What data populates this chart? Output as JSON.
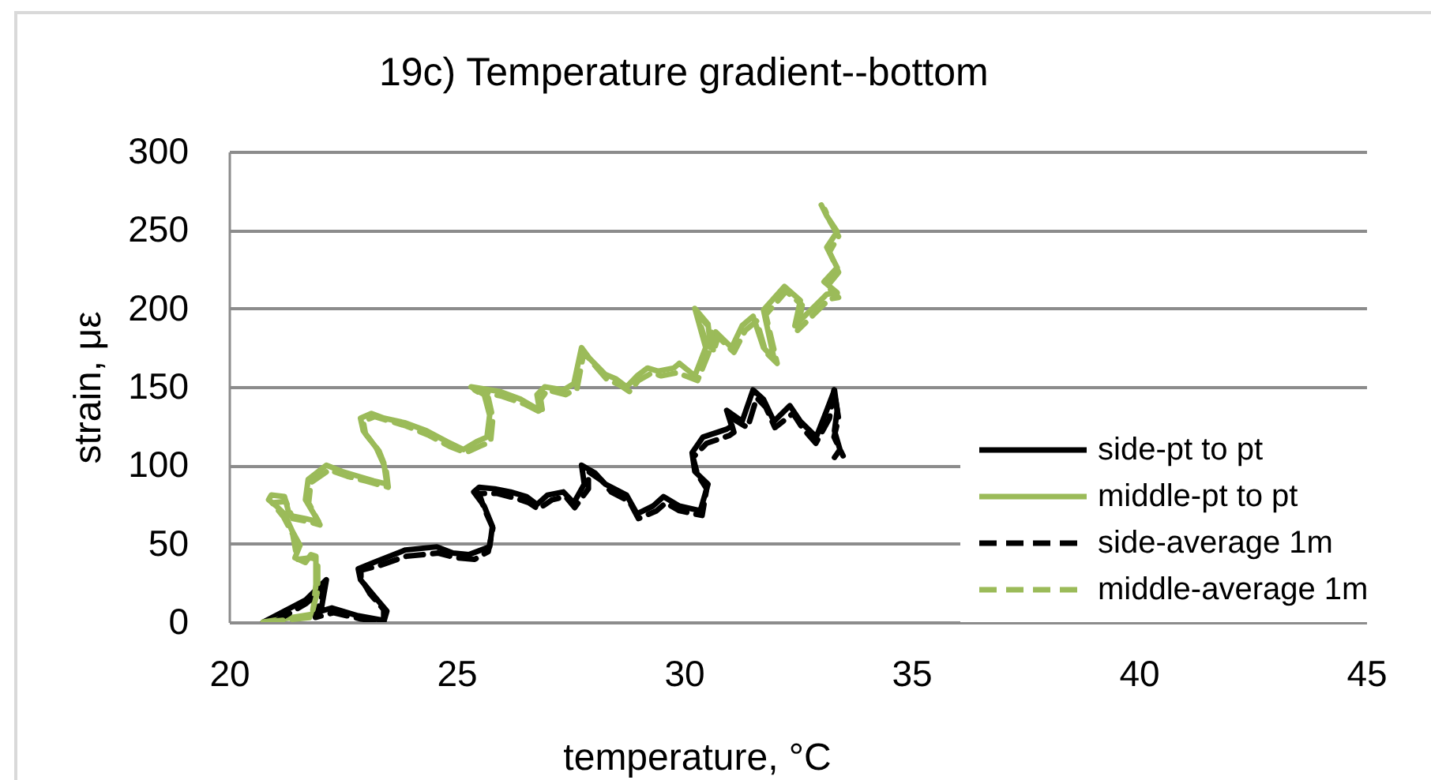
{
  "chart_data": {
    "type": "line",
    "title": "19c) Temperature gradient--bottom",
    "xlabel": "temperature, °C",
    "ylabel": "strain, με",
    "xlim": [
      20,
      45
    ],
    "xticks": [
      20,
      25,
      30,
      35,
      40,
      45
    ],
    "ylim": [
      0,
      300
    ],
    "yticks": [
      0,
      50,
      100,
      150,
      200,
      250,
      300
    ],
    "grid": "y",
    "legend": "bottom right",
    "line_style": "solid",
    "series": [
      {
        "name": "side-pt to pt",
        "color": "#000000",
        "x": [
          20.75,
          21.68,
          22.14,
          22.02,
          22.26,
          22.84,
          23.41,
          23.47,
          23.18,
          22.89,
          22.84,
          23.18,
          23.88,
          24.57,
          24.92,
          25.27,
          25.73,
          25.79,
          25.61,
          25.38,
          25.5,
          25.84,
          26.19,
          26.54,
          26.77,
          27.0,
          27.35,
          27.58,
          27.81,
          27.75,
          28.05,
          28.27,
          28.74,
          28.97,
          29.32,
          29.55,
          29.9,
          30.36,
          30.53,
          30.24,
          30.18,
          30.42,
          30.94,
          31.05,
          30.94,
          31.28,
          31.52,
          31.75,
          31.98,
          32.33,
          32.56,
          32.91,
          33.14,
          33.31,
          33.37,
          33.31,
          33.43,
          33.31
        ],
        "values": [
          0,
          14,
          27,
          7,
          9,
          4,
          1,
          7,
          17,
          27,
          34,
          38,
          46,
          48,
          44,
          43,
          48,
          61,
          74,
          83,
          86,
          85,
          83,
          80,
          75,
          81,
          83,
          76,
          88,
          100,
          95,
          88,
          81,
          69,
          74,
          80,
          74,
          71,
          88,
          96,
          108,
          118,
          123,
          125,
          135,
          128,
          148,
          142,
          128,
          138,
          128,
          118,
          135,
          148,
          135,
          122,
          110,
          105
        ]
      },
      {
        "name": "middle-pt to pt",
        "color": "#9bbb59",
        "x": [
          20.75,
          21.84,
          21.91,
          21.91,
          21.8,
          21.68,
          21.45,
          21.56,
          21.39,
          21.22,
          21.04,
          20.87,
          20.93,
          21.22,
          21.33,
          21.68,
          21.97,
          21.68,
          21.74,
          22.14,
          22.49,
          22.84,
          23.18,
          23.47,
          23.41,
          23.24,
          22.95,
          22.89,
          23.13,
          23.41,
          23.88,
          24.34,
          24.8,
          25.15,
          25.44,
          25.67,
          25.73,
          25.61,
          25.32,
          25.96,
          26.42,
          26.83,
          26.77,
          26.94,
          27.35,
          27.58,
          27.75,
          27.93,
          28.27,
          28.51,
          28.74,
          28.97,
          29.2,
          29.43,
          29.78,
          29.9,
          30.24,
          30.48,
          30.24,
          30.53,
          30.59,
          30.7,
          31.05,
          31.28,
          31.52,
          31.75,
          31.98,
          31.75,
          32.21,
          32.56,
          32.44,
          32.79,
          33.14,
          33.37,
          33.08,
          33.37,
          33.14,
          33.37,
          33.14,
          33.02
        ],
        "values": [
          0,
          5,
          24,
          42,
          43,
          38,
          41,
          49,
          58,
          69,
          74,
          78,
          81,
          80,
          68,
          66,
          64,
          78,
          91,
          100,
          96,
          93,
          90,
          88,
          100,
          111,
          122,
          130,
          133,
          130,
          127,
          122,
          115,
          110,
          115,
          118,
          132,
          145,
          150,
          147,
          142,
          135,
          145,
          150,
          148,
          152,
          175,
          168,
          158,
          155,
          150,
          157,
          162,
          160,
          162,
          165,
          157,
          175,
          200,
          190,
          175,
          185,
          175,
          189,
          195,
          175,
          168,
          199,
          214,
          205,
          189,
          199,
          209,
          210,
          217,
          226,
          239,
          249,
          259,
          266
        ]
      },
      {
        "name": "side-average 1m",
        "color": "#000000",
        "line_style": "dashed",
        "x": [
          21.0,
          21.7,
          22.1,
          21.9,
          22.3,
          22.9,
          23.4,
          23.4,
          23.1,
          22.9,
          22.9,
          23.3,
          23.9,
          24.6,
          25.0,
          25.4,
          25.7,
          25.8,
          25.6,
          25.5,
          25.9,
          26.3,
          26.6,
          26.8,
          27.1,
          27.4,
          27.6,
          27.9,
          27.9,
          28.2,
          28.4,
          28.8,
          29.0,
          29.4,
          29.6,
          29.9,
          30.4,
          30.5,
          30.3,
          30.2,
          30.5,
          31.0,
          31.1,
          31.0,
          31.4,
          31.6,
          31.8,
          32.0,
          32.4,
          32.6,
          32.9,
          33.2,
          33.3,
          33.4,
          33.3,
          33.5
        ],
        "values": [
          0,
          12,
          22,
          3,
          6,
          2,
          0,
          8,
          18,
          28,
          33,
          36,
          42,
          44,
          41,
          40,
          45,
          60,
          73,
          82,
          82,
          79,
          76,
          72,
          78,
          80,
          73,
          85,
          96,
          90,
          83,
          77,
          66,
          71,
          76,
          71,
          68,
          85,
          94,
          105,
          114,
          119,
          121,
          131,
          124,
          143,
          137,
          124,
          133,
          124,
          114,
          130,
          148,
          130,
          118,
          106
        ]
      },
      {
        "name": "middle-average 1m",
        "color": "#9bbb59",
        "line_style": "dashed",
        "x": [
          20.8,
          21.8,
          21.95,
          21.95,
          21.8,
          21.5,
          21.4,
          21.2,
          20.95,
          21.25,
          21.4,
          21.75,
          22.0,
          21.75,
          21.8,
          22.2,
          22.6,
          23.0,
          23.5,
          23.45,
          23.3,
          23.0,
          22.95,
          23.2,
          23.9,
          24.4,
          24.85,
          25.2,
          25.5,
          25.75,
          25.8,
          25.7,
          25.4,
          26.0,
          26.5,
          26.9,
          26.85,
          27.0,
          27.4,
          27.65,
          27.8,
          28.0,
          28.3,
          28.6,
          28.8,
          29.0,
          29.3,
          29.5,
          29.85,
          30.3,
          30.55,
          30.3,
          30.6,
          30.65,
          30.75,
          31.1,
          31.35,
          31.6,
          31.8,
          32.05,
          31.8,
          32.25,
          32.6,
          32.5,
          32.85,
          33.2,
          33.4,
          33.15,
          33.4,
          33.2,
          33.4,
          33.2,
          33.1
        ],
        "values": [
          0,
          3,
          20,
          40,
          41,
          40,
          56,
          67,
          76,
          77,
          66,
          64,
          62,
          76,
          89,
          97,
          93,
          90,
          86,
          98,
          109,
          120,
          128,
          131,
          125,
          119,
          112,
          108,
          112,
          115,
          130,
          143,
          148,
          144,
          139,
          133,
          142,
          148,
          145,
          149,
          172,
          165,
          155,
          151,
          147,
          154,
          159,
          157,
          159,
          154,
          172,
          196,
          187,
          172,
          182,
          172,
          186,
          192,
          172,
          165,
          196,
          211,
          202,
          186,
          196,
          206,
          207,
          214,
          223,
          236,
          246,
          256,
          263
        ]
      }
    ]
  }
}
